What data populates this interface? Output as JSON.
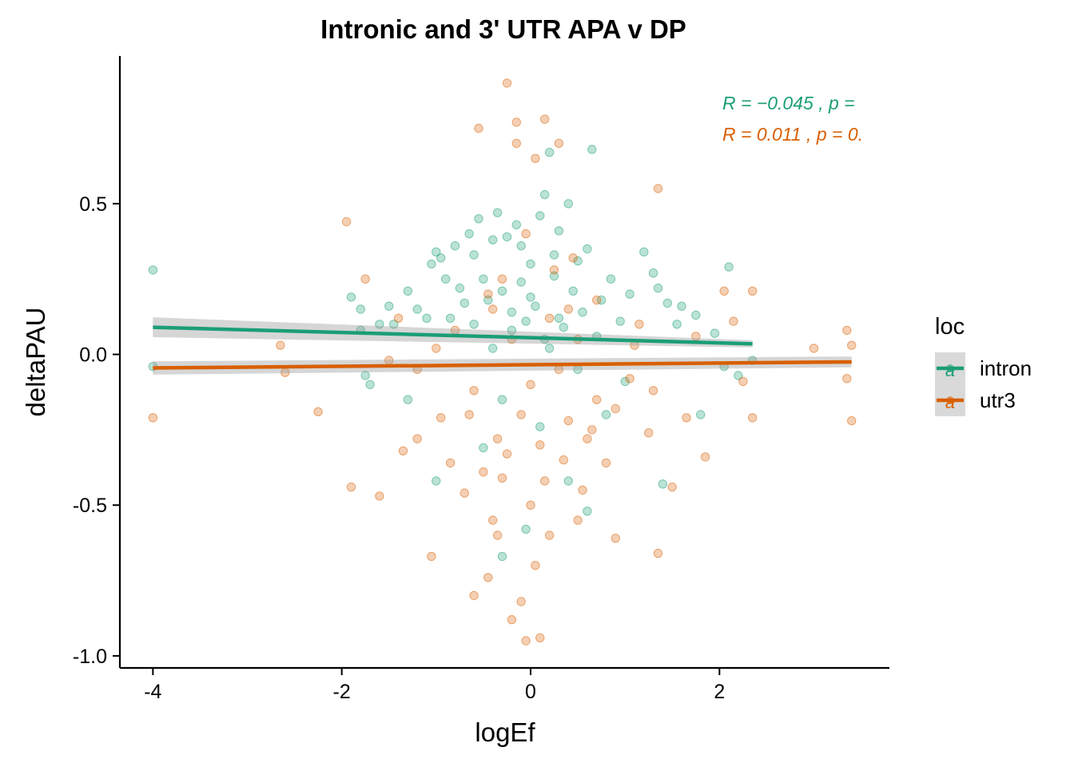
{
  "chart_data": {
    "type": "scatter",
    "title": "Intronic and 3' UTR APA v DP",
    "xlabel": "logEf",
    "ylabel": "deltaPAU",
    "xlim": [
      -4.35,
      3.8
    ],
    "ylim": [
      -1.04,
      0.99
    ],
    "xticks": [
      -4,
      -2,
      0,
      2
    ],
    "xtick_labels": [
      "-4",
      "-2",
      "0",
      "2"
    ],
    "yticks": [
      -1.0,
      -0.5,
      0.0,
      0.5
    ],
    "ytick_labels": [
      "-1.0",
      "-0.5",
      "0.0",
      "0.5"
    ],
    "grid": false,
    "legend": {
      "title": "loc",
      "position": "right",
      "glyph": "a"
    },
    "series": [
      {
        "name": "intron",
        "color": "#1b9e77",
        "opacity": 0.3,
        "regression": {
          "x": [
            -4.0,
            2.35
          ],
          "y": [
            0.09,
            0.035
          ],
          "ci_half_width": [
            0.033,
            0.012
          ]
        },
        "stat_label": "R = −0.045 , p =",
        "points": [
          [
            -4.0,
            0.28
          ],
          [
            -4.0,
            -0.04
          ],
          [
            -1.9,
            0.19
          ],
          [
            -1.8,
            0.15
          ],
          [
            -1.8,
            0.08
          ],
          [
            -1.75,
            -0.07
          ],
          [
            -1.7,
            -0.1
          ],
          [
            -1.6,
            0.1
          ],
          [
            -1.5,
            0.16
          ],
          [
            -1.45,
            0.1
          ],
          [
            -1.3,
            0.21
          ],
          [
            -1.3,
            -0.15
          ],
          [
            -1.2,
            0.15
          ],
          [
            -1.1,
            0.12
          ],
          [
            -1.05,
            0.3
          ],
          [
            -1.0,
            0.34
          ],
          [
            -0.95,
            0.32
          ],
          [
            -0.9,
            0.25
          ],
          [
            -0.85,
            0.12
          ],
          [
            -0.8,
            0.36
          ],
          [
            -0.75,
            0.22
          ],
          [
            -0.7,
            0.17
          ],
          [
            -0.65,
            0.4
          ],
          [
            -0.6,
            0.33
          ],
          [
            -0.55,
            0.45
          ],
          [
            -0.5,
            0.25
          ],
          [
            -0.45,
            0.18
          ],
          [
            -0.4,
            0.38
          ],
          [
            -0.35,
            0.47
          ],
          [
            -0.3,
            0.21
          ],
          [
            -0.25,
            0.39
          ],
          [
            -0.2,
            0.14
          ],
          [
            -0.15,
            0.43
          ],
          [
            -0.1,
            0.36
          ],
          [
            -0.05,
            0.11
          ],
          [
            0.0,
            0.3
          ],
          [
            0.05,
            0.16
          ],
          [
            0.1,
            0.46
          ],
          [
            0.15,
            0.53
          ],
          [
            0.2,
            0.67
          ],
          [
            0.25,
            0.26
          ],
          [
            0.3,
            0.41
          ],
          [
            0.35,
            0.09
          ],
          [
            0.4,
            0.5
          ],
          [
            0.45,
            0.21
          ],
          [
            0.5,
            0.31
          ],
          [
            0.55,
            0.14
          ],
          [
            0.6,
            0.35
          ],
          [
            0.65,
            0.68
          ],
          [
            0.7,
            0.06
          ],
          [
            0.75,
            0.18
          ],
          [
            0.85,
            0.25
          ],
          [
            0.95,
            0.11
          ],
          [
            1.05,
            0.2
          ],
          [
            1.2,
            0.34
          ],
          [
            1.3,
            0.27
          ],
          [
            1.35,
            0.22
          ],
          [
            1.45,
            0.17
          ],
          [
            1.55,
            0.1
          ],
          [
            1.6,
            0.16
          ],
          [
            1.75,
            0.13
          ],
          [
            1.8,
            -0.2
          ],
          [
            1.95,
            0.07
          ],
          [
            2.05,
            -0.04
          ],
          [
            2.1,
            0.29
          ],
          [
            2.2,
            -0.07
          ],
          [
            2.35,
            -0.02
          ],
          [
            -0.5,
            -0.31
          ],
          [
            -0.3,
            -0.15
          ],
          [
            0.1,
            -0.24
          ],
          [
            0.4,
            -0.42
          ],
          [
            0.6,
            -0.52
          ],
          [
            0.8,
            -0.2
          ],
          [
            1.0,
            -0.09
          ],
          [
            1.4,
            -0.43
          ],
          [
            -1.0,
            -0.42
          ],
          [
            -0.3,
            -0.67
          ],
          [
            -0.05,
            -0.58
          ],
          [
            -0.2,
            0.08
          ],
          [
            0.0,
            0.19
          ],
          [
            0.2,
            0.02
          ],
          [
            0.3,
            0.12
          ],
          [
            -0.1,
            0.24
          ],
          [
            0.15,
            0.05
          ],
          [
            -0.4,
            0.02
          ],
          [
            0.5,
            -0.05
          ],
          [
            -0.6,
            0.1
          ],
          [
            0.25,
            0.33
          ]
        ]
      },
      {
        "name": "utr3",
        "color": "#d95f02",
        "opacity": 0.3,
        "regression": {
          "x": [
            -4.0,
            3.4
          ],
          "y": [
            -0.045,
            -0.025
          ],
          "ci_half_width": [
            0.022,
            0.018
          ]
        },
        "stat_label": "R = 0.011 , p = 0.",
        "points": [
          [
            -4.0,
            -0.21
          ],
          [
            -2.65,
            0.03
          ],
          [
            -2.6,
            -0.06
          ],
          [
            -2.25,
            -0.19
          ],
          [
            -1.95,
            0.44
          ],
          [
            -1.9,
            -0.44
          ],
          [
            -1.75,
            0.25
          ],
          [
            -1.6,
            -0.47
          ],
          [
            -1.5,
            -0.02
          ],
          [
            -1.35,
            -0.32
          ],
          [
            -1.2,
            -0.28
          ],
          [
            -1.05,
            -0.67
          ],
          [
            -0.95,
            -0.21
          ],
          [
            -0.85,
            -0.36
          ],
          [
            -0.7,
            -0.46
          ],
          [
            -0.6,
            -0.8
          ],
          [
            -0.5,
            -0.39
          ],
          [
            -0.45,
            -0.74
          ],
          [
            -0.4,
            -0.55
          ],
          [
            -0.35,
            -0.6
          ],
          [
            -0.3,
            -0.41
          ],
          [
            -0.25,
            0.9
          ],
          [
            -0.2,
            -0.88
          ],
          [
            -0.15,
            0.77
          ],
          [
            -0.1,
            -0.82
          ],
          [
            -0.05,
            -0.95
          ],
          [
            0.0,
            -0.5
          ],
          [
            0.05,
            0.65
          ],
          [
            0.1,
            -0.94
          ],
          [
            0.15,
            0.78
          ],
          [
            0.2,
            -0.6
          ],
          [
            0.3,
            0.7
          ],
          [
            0.35,
            -0.35
          ],
          [
            0.4,
            -0.22
          ],
          [
            0.45,
            0.32
          ],
          [
            0.5,
            -0.55
          ],
          [
            0.55,
            -0.45
          ],
          [
            0.6,
            -0.28
          ],
          [
            0.7,
            -0.15
          ],
          [
            0.8,
            -0.36
          ],
          [
            0.9,
            -0.61
          ],
          [
            1.05,
            -0.08
          ],
          [
            1.15,
            0.1
          ],
          [
            1.25,
            -0.26
          ],
          [
            1.35,
            0.55
          ],
          [
            1.35,
            -0.66
          ],
          [
            1.5,
            -0.44
          ],
          [
            1.65,
            -0.21
          ],
          [
            1.75,
            0.06
          ],
          [
            1.85,
            -0.34
          ],
          [
            2.05,
            0.21
          ],
          [
            2.15,
            0.11
          ],
          [
            2.25,
            -0.09
          ],
          [
            2.35,
            0.21
          ],
          [
            2.35,
            -0.21
          ],
          [
            3.0,
            0.02
          ],
          [
            3.35,
            0.08
          ],
          [
            3.4,
            0.03
          ],
          [
            3.4,
            -0.22
          ],
          [
            3.35,
            -0.08
          ],
          [
            -0.55,
            0.75
          ],
          [
            -0.15,
            0.7
          ],
          [
            -0.3,
            0.25
          ],
          [
            0.1,
            -0.3
          ],
          [
            0.0,
            -0.1
          ],
          [
            -0.2,
            0.05
          ],
          [
            0.2,
            0.12
          ],
          [
            -0.1,
            -0.2
          ],
          [
            0.3,
            -0.05
          ],
          [
            -0.4,
            0.15
          ],
          [
            0.5,
            0.05
          ],
          [
            -0.6,
            -0.12
          ],
          [
            0.7,
            0.18
          ],
          [
            -0.8,
            0.08
          ],
          [
            0.9,
            -0.18
          ],
          [
            -1.0,
            0.02
          ],
          [
            1.1,
            0.03
          ],
          [
            -1.2,
            -0.05
          ],
          [
            1.3,
            -0.12
          ],
          [
            -1.4,
            0.12
          ],
          [
            0.05,
            -0.7
          ],
          [
            -0.05,
            0.4
          ],
          [
            0.25,
            0.28
          ],
          [
            -0.35,
            -0.28
          ],
          [
            0.15,
            -0.42
          ],
          [
            -0.25,
            -0.33
          ],
          [
            0.4,
            0.15
          ],
          [
            -0.45,
            0.2
          ],
          [
            0.65,
            -0.25
          ],
          [
            -0.65,
            -0.2
          ]
        ]
      }
    ]
  }
}
